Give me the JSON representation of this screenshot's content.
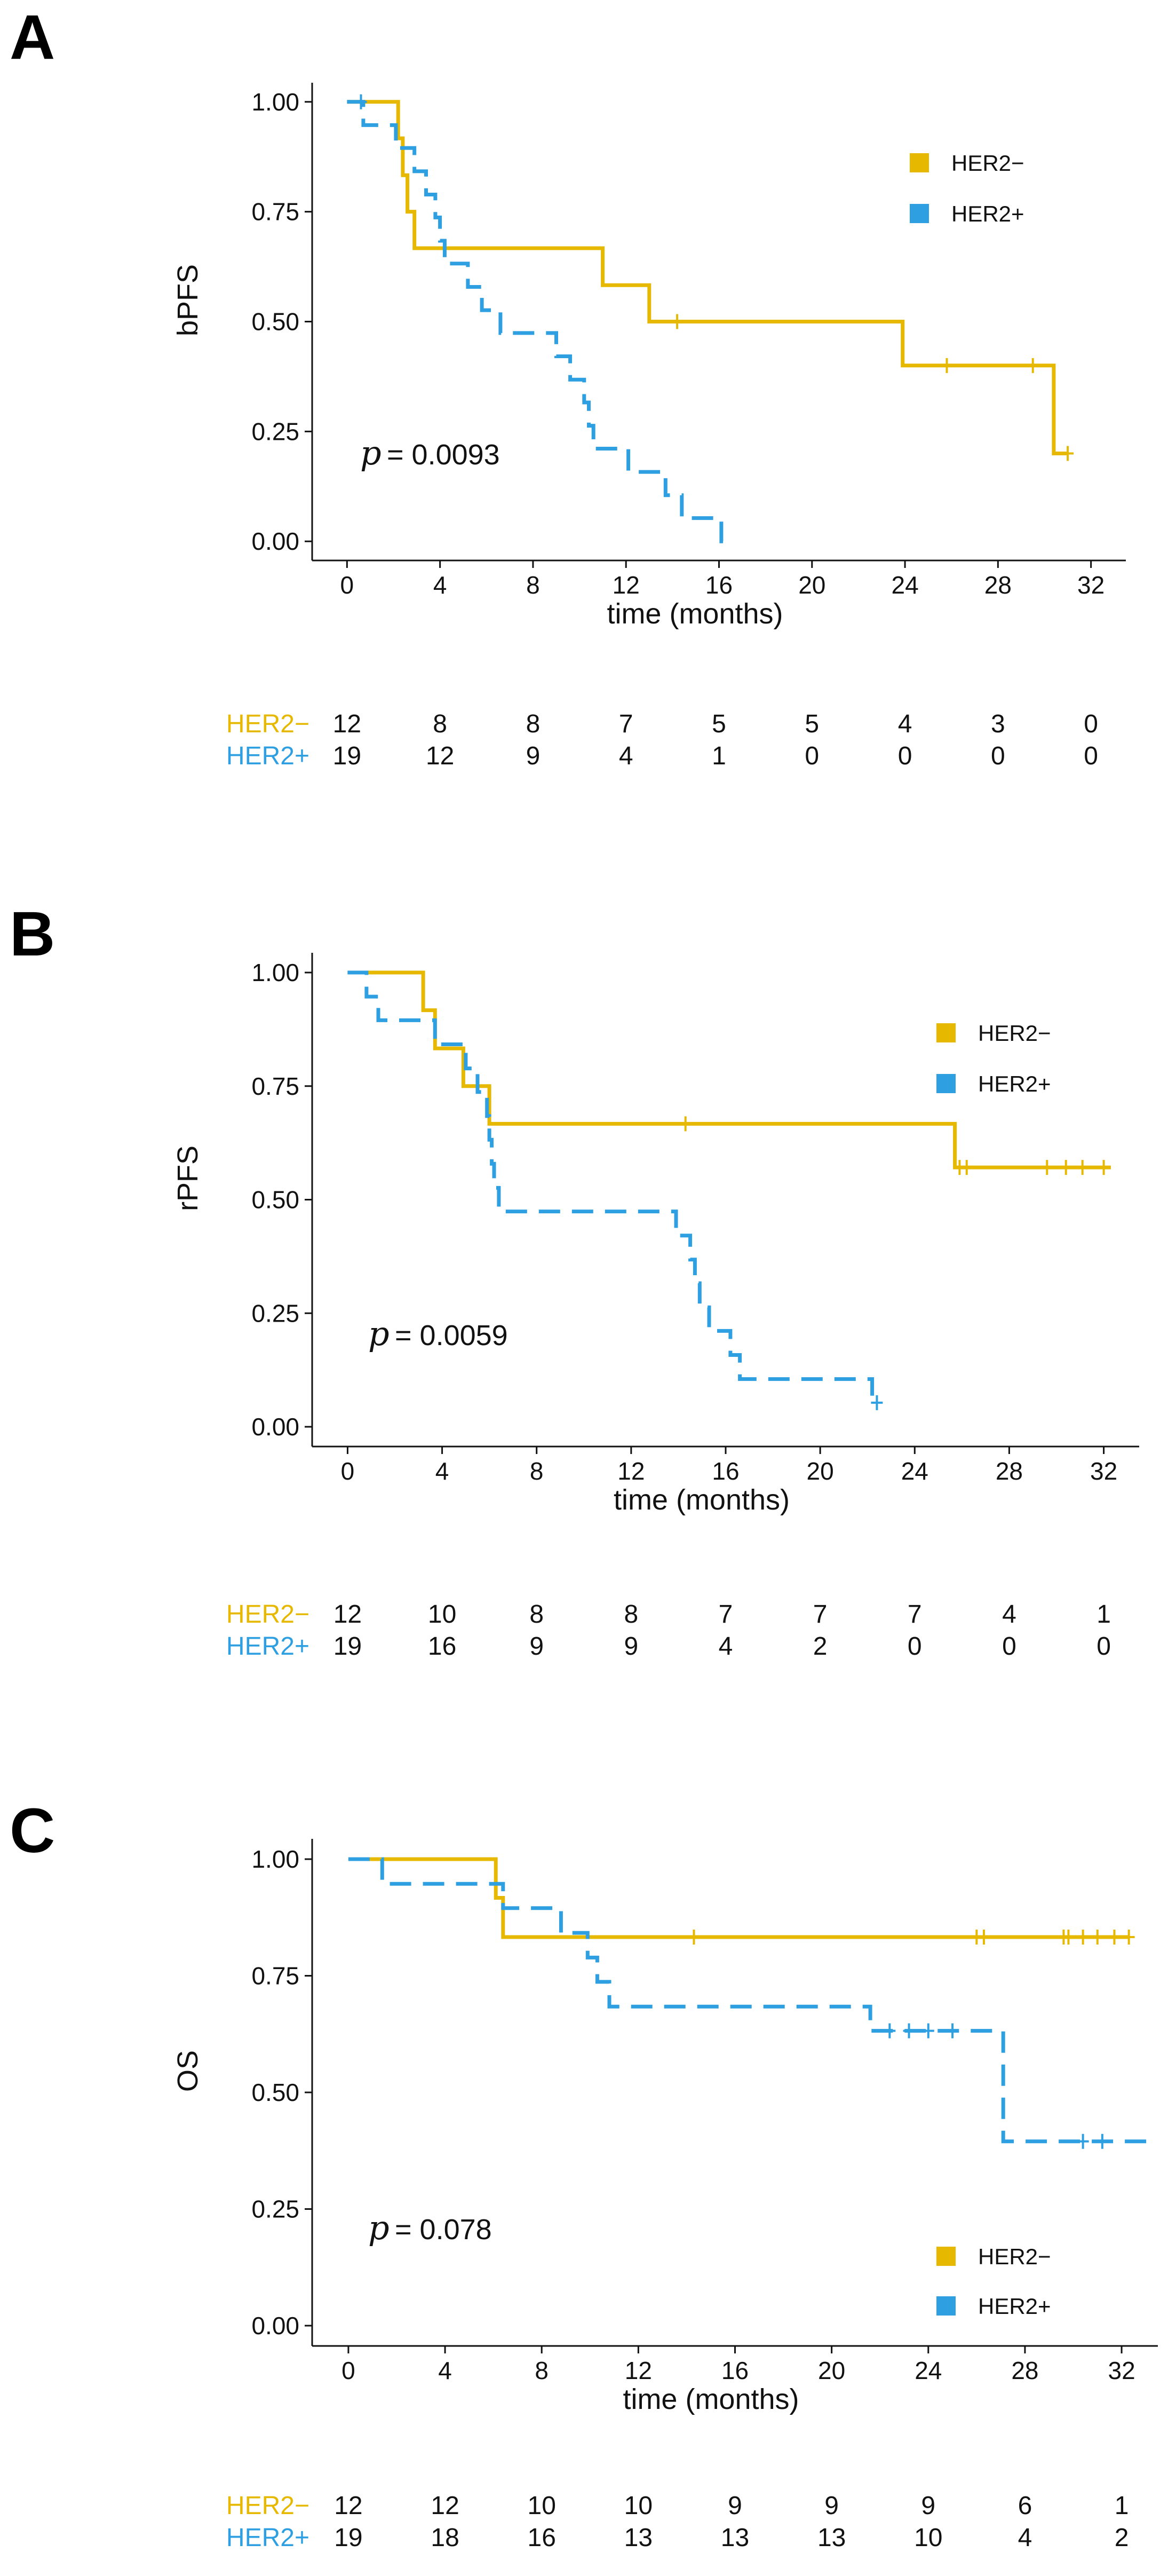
{
  "colors": {
    "her2_neg": "#E6B800",
    "her2_pos": "#2E9FE0"
  },
  "chart_data": [
    {
      "type": "line",
      "panel": "A",
      "ylabel": "bPFS",
      "xlabel": "time (months)",
      "xlim": [
        -1.5,
        33.5
      ],
      "ylim": [
        0,
        1
      ],
      "x_ticks": [
        0,
        4,
        8,
        12,
        16,
        20,
        24,
        28,
        32
      ],
      "x_tick_labels": [
        "0",
        "4",
        "8",
        "12",
        "16",
        "20",
        "24",
        "28",
        "32"
      ],
      "y_ticks": [
        0,
        0.25,
        0.5,
        0.75,
        1
      ],
      "y_tick_labels": [
        "0.00",
        "0.25",
        "0.50",
        "0.75",
        "1.00"
      ],
      "legend": {
        "position": "top-right",
        "entries": [
          "HER2−",
          "HER2+"
        ]
      },
      "p_symbol": "p",
      "p_value": "= 0.0093",
      "series": [
        {
          "name": "HER2−",
          "style": "solid",
          "steps": [
            [
              0,
              1.0
            ],
            [
              2.2,
              0.917
            ],
            [
              2.4,
              0.833
            ],
            [
              2.6,
              0.75
            ],
            [
              2.9,
              0.667
            ],
            [
              11.0,
              0.583
            ],
            [
              13.0,
              0.5
            ],
            [
              23.9,
              0.4
            ],
            [
              30.4,
              0.2
            ],
            [
              31.0,
              0.2
            ]
          ],
          "censors": [
            [
              14.2,
              0.5
            ],
            [
              25.8,
              0.4
            ],
            [
              29.5,
              0.4
            ],
            [
              31.0,
              0.2
            ]
          ]
        },
        {
          "name": "HER2+",
          "style": "dashed",
          "steps": [
            [
              0,
              1.0
            ],
            [
              0.7,
              0.947
            ],
            [
              2.1,
              0.895
            ],
            [
              2.9,
              0.842
            ],
            [
              3.4,
              0.789
            ],
            [
              3.8,
              0.737
            ],
            [
              4.0,
              0.684
            ],
            [
              4.2,
              0.632
            ],
            [
              5.2,
              0.579
            ],
            [
              5.8,
              0.526
            ],
            [
              6.6,
              0.474
            ],
            [
              9.0,
              0.421
            ],
            [
              9.6,
              0.368
            ],
            [
              10.2,
              0.316
            ],
            [
              10.4,
              0.263
            ],
            [
              10.6,
              0.211
            ],
            [
              12.1,
              0.158
            ],
            [
              13.7,
              0.105
            ],
            [
              14.4,
              0.053
            ],
            [
              16.1,
              0.0
            ],
            [
              16.2,
              0.0
            ]
          ],
          "censors": [
            [
              0.6,
              1.0
            ]
          ]
        }
      ],
      "risk_table": {
        "times": [
          0,
          4,
          8,
          12,
          16,
          20,
          24,
          28,
          32
        ],
        "rows": [
          {
            "label": "HER2−",
            "values": [
              "12",
              "8",
              "8",
              "7",
              "5",
              "5",
              "4",
              "3",
              "0"
            ]
          },
          {
            "label": "HER2+",
            "values": [
              "19",
              "12",
              "9",
              "4",
              "1",
              "0",
              "0",
              "0",
              "0"
            ]
          }
        ]
      }
    },
    {
      "type": "line",
      "panel": "B",
      "ylabel": "rPFS",
      "xlabel": "time (months)",
      "xlim": [
        -1.5,
        33.5
      ],
      "ylim": [
        0,
        1
      ],
      "x_ticks": [
        0,
        4,
        8,
        12,
        16,
        20,
        24,
        28,
        32
      ],
      "x_tick_labels": [
        "0",
        "4",
        "8",
        "12",
        "16",
        "20",
        "24",
        "28",
        "32"
      ],
      "y_ticks": [
        0,
        0.25,
        0.5,
        0.75,
        1
      ],
      "y_tick_labels": [
        "0.00",
        "0.25",
        "0.50",
        "0.75",
        "1.00"
      ],
      "legend": {
        "position": "top-right",
        "entries": [
          "HER2−",
          "HER2+"
        ]
      },
      "p_symbol": "p",
      "p_value": "= 0.0059",
      "series": [
        {
          "name": "HER2−",
          "style": "solid",
          "steps": [
            [
              0,
              1.0
            ],
            [
              3.2,
              0.917
            ],
            [
              3.7,
              0.833
            ],
            [
              4.9,
              0.75
            ],
            [
              6.0,
              0.667
            ],
            [
              25.7,
              0.571
            ],
            [
              32.3,
              0.571
            ]
          ],
          "censors": [
            [
              14.3,
              0.667
            ],
            [
              25.9,
              0.571
            ],
            [
              26.2,
              0.571
            ],
            [
              29.6,
              0.571
            ],
            [
              30.4,
              0.571
            ],
            [
              31.1,
              0.571
            ],
            [
              32.0,
              0.571
            ]
          ]
        },
        {
          "name": "HER2+",
          "style": "dashed",
          "steps": [
            [
              0,
              1.0
            ],
            [
              0.8,
              0.947
            ],
            [
              1.3,
              0.895
            ],
            [
              3.7,
              0.842
            ],
            [
              5.0,
              0.789
            ],
            [
              5.5,
              0.737
            ],
            [
              5.9,
              0.684
            ],
            [
              6.0,
              0.632
            ],
            [
              6.1,
              0.579
            ],
            [
              6.2,
              0.526
            ],
            [
              6.4,
              0.474
            ],
            [
              13.9,
              0.421
            ],
            [
              14.5,
              0.368
            ],
            [
              14.7,
              0.316
            ],
            [
              14.9,
              0.263
            ],
            [
              15.3,
              0.211
            ],
            [
              16.2,
              0.158
            ],
            [
              16.6,
              0.105
            ],
            [
              22.2,
              0.053
            ],
            [
              22.4,
              0.053
            ]
          ],
          "censors": [
            [
              22.4,
              0.053
            ]
          ]
        }
      ],
      "risk_table": {
        "times": [
          0,
          4,
          8,
          12,
          16,
          20,
          24,
          28,
          32
        ],
        "rows": [
          {
            "label": "HER2−",
            "values": [
              "12",
              "10",
              "8",
              "8",
              "7",
              "7",
              "7",
              "4",
              "1"
            ]
          },
          {
            "label": "HER2+",
            "values": [
              "19",
              "16",
              "9",
              "9",
              "4",
              "2",
              "0",
              "0",
              "0"
            ]
          }
        ]
      }
    },
    {
      "type": "line",
      "panel": "C",
      "ylabel": "OS",
      "xlabel": "time (months)",
      "xlim": [
        -1.5,
        33.5
      ],
      "ylim": [
        0,
        1
      ],
      "x_ticks": [
        0,
        4,
        8,
        12,
        16,
        20,
        24,
        28,
        32
      ],
      "x_tick_labels": [
        "0",
        "4",
        "8",
        "12",
        "16",
        "20",
        "24",
        "28",
        "32"
      ],
      "y_ticks": [
        0,
        0.25,
        0.5,
        0.75,
        1
      ],
      "y_tick_labels": [
        "0.00",
        "0.25",
        "0.50",
        "0.75",
        "1.00"
      ],
      "legend": {
        "position": "bottom-right",
        "entries": [
          "HER2−",
          "HER2+"
        ]
      },
      "p_symbol": "p",
      "p_value": "= 0.078",
      "series": [
        {
          "name": "HER2−",
          "style": "solid",
          "steps": [
            [
              0,
              1.0
            ],
            [
              6.1,
              0.917
            ],
            [
              6.4,
              0.833
            ],
            [
              32.3,
              0.833
            ]
          ],
          "censors": [
            [
              14.3,
              0.833
            ],
            [
              26.0,
              0.833
            ],
            [
              26.3,
              0.833
            ],
            [
              29.6,
              0.833
            ],
            [
              29.8,
              0.833
            ],
            [
              30.4,
              0.833
            ],
            [
              31.0,
              0.833
            ],
            [
              31.7,
              0.833
            ],
            [
              32.3,
              0.833
            ]
          ]
        },
        {
          "name": "HER2+",
          "style": "dashed",
          "steps": [
            [
              0,
              1.0
            ],
            [
              1.4,
              0.947
            ],
            [
              6.4,
              0.895
            ],
            [
              8.8,
              0.842
            ],
            [
              9.9,
              0.789
            ],
            [
              10.3,
              0.737
            ],
            [
              10.8,
              0.684
            ],
            [
              21.6,
              0.632
            ],
            [
              27.1,
              0.395
            ],
            [
              33.4,
              0.395
            ]
          ],
          "censors": [
            [
              22.4,
              0.632
            ],
            [
              23.2,
              0.632
            ],
            [
              24.0,
              0.632
            ],
            [
              25.0,
              0.632
            ],
            [
              30.4,
              0.395
            ],
            [
              31.2,
              0.395
            ]
          ]
        }
      ],
      "risk_table": {
        "times": [
          0,
          4,
          8,
          12,
          16,
          20,
          24,
          28,
          32
        ],
        "rows": [
          {
            "label": "HER2−",
            "values": [
              "12",
              "12",
              "10",
              "10",
              "9",
              "9",
              "9",
              "6",
              "1"
            ]
          },
          {
            "label": "HER2+",
            "values": [
              "19",
              "18",
              "16",
              "13",
              "13",
              "13",
              "10",
              "4",
              "2"
            ]
          }
        ]
      }
    }
  ]
}
